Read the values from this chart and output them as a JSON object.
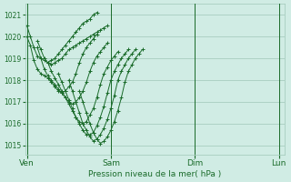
{
  "bg_color": "#d0ece4",
  "grid_color": "#a0c8b8",
  "line_color": "#1a6b2a",
  "marker_color": "#1a6b2a",
  "xlabel": "Pression niveau de la mer( hPa )",
  "yticks": [
    1015,
    1016,
    1017,
    1018,
    1019,
    1020,
    1021
  ],
  "ylim": [
    1014.6,
    1021.5
  ],
  "xtick_labels": [
    "Ven",
    "Sam",
    "Dim",
    "Lun"
  ],
  "xtick_positions": [
    0,
    96,
    192,
    288
  ],
  "xlim": [
    -2,
    295
  ],
  "lines": [
    {
      "start_x": 0,
      "points": [
        1020.5,
        1020.0,
        1019.5,
        1019.1,
        1019.0,
        1018.9,
        1018.8,
        1018.9,
        1019.0,
        1019.2,
        1019.4,
        1019.6,
        1019.8,
        1020.0,
        1020.2,
        1020.4,
        1020.6,
        1020.7,
        1020.8,
        1021.0,
        1021.1
      ]
    },
    {
      "start_x": 12,
      "points": [
        1019.8,
        1019.4,
        1019.0,
        1018.8,
        1018.7,
        1018.8,
        1018.9,
        1019.0,
        1019.2,
        1019.4,
        1019.5,
        1019.6,
        1019.7,
        1019.8,
        1019.9,
        1020.0,
        1020.1,
        1020.2,
        1020.3,
        1020.4,
        1020.5
      ]
    },
    {
      "start_x": 0,
      "points": [
        1020.0,
        1019.6,
        1018.9,
        1018.5,
        1018.3,
        1018.2,
        1018.1,
        1017.9,
        1017.7,
        1017.5,
        1017.4,
        1017.5,
        1017.7,
        1017.9,
        1018.3,
        1018.8,
        1019.2,
        1019.5,
        1019.7,
        1019.9,
        1020.1
      ]
    },
    {
      "start_x": 12,
      "points": [
        1019.5,
        1019.0,
        1018.5,
        1018.2,
        1018.0,
        1017.8,
        1017.6,
        1017.4,
        1017.2,
        1017.0,
        1016.9,
        1017.0,
        1017.2,
        1017.5,
        1017.9,
        1018.4,
        1018.8,
        1019.1,
        1019.3,
        1019.5,
        1019.7
      ]
    },
    {
      "start_x": 24,
      "points": [
        1018.8,
        1018.4,
        1018.1,
        1017.8,
        1017.5,
        1017.2,
        1016.9,
        1016.6,
        1016.3,
        1016.1,
        1016.0,
        1016.1,
        1016.4,
        1016.7,
        1017.2,
        1017.8,
        1018.3,
        1018.6,
        1018.9,
        1019.1,
        1019.3
      ]
    },
    {
      "start_x": 36,
      "points": [
        1018.3,
        1017.9,
        1017.5,
        1017.1,
        1016.7,
        1016.3,
        1016.0,
        1015.7,
        1015.5,
        1015.5,
        1015.6,
        1015.9,
        1016.3,
        1016.8,
        1017.4,
        1018.0,
        1018.4,
        1018.7,
        1019.0,
        1019.2,
        1019.4
      ]
    },
    {
      "start_x": 48,
      "points": [
        1018.0,
        1017.5,
        1017.0,
        1016.5,
        1016.0,
        1015.7,
        1015.4,
        1015.2,
        1015.3,
        1015.5,
        1015.8,
        1016.2,
        1016.7,
        1017.3,
        1018.0,
        1018.4,
        1018.7,
        1019.0,
        1019.2,
        1019.4
      ]
    },
    {
      "start_x": 60,
      "points": [
        1017.5,
        1017.0,
        1016.5,
        1016.0,
        1015.6,
        1015.3,
        1015.1,
        1015.2,
        1015.4,
        1015.7,
        1016.1,
        1016.6,
        1017.2,
        1017.9,
        1018.4,
        1018.7,
        1019.0,
        1019.2,
        1019.4
      ]
    }
  ]
}
